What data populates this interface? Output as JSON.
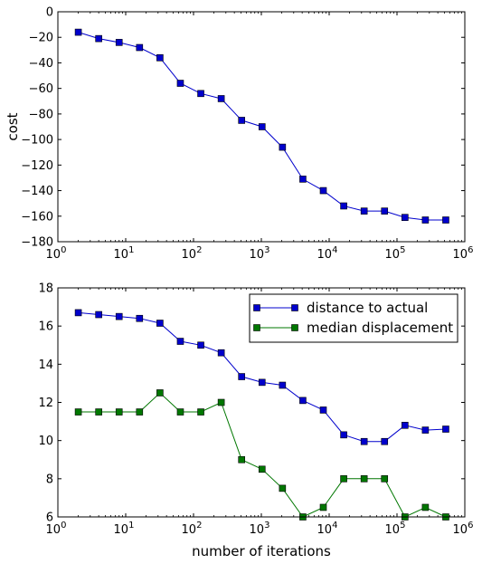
{
  "chart_data": [
    {
      "type": "line",
      "xscale": "log",
      "xlim": [
        1,
        1000000
      ],
      "ylim": [
        -180,
        0
      ],
      "xlabel": "",
      "ylabel": "cost",
      "xticks": [
        {
          "value": 1,
          "base": "10",
          "exp": "0"
        },
        {
          "value": 10,
          "base": "10",
          "exp": "1"
        },
        {
          "value": 100,
          "base": "10",
          "exp": "2"
        },
        {
          "value": 1000,
          "base": "10",
          "exp": "3"
        },
        {
          "value": 10000,
          "base": "10",
          "exp": "4"
        },
        {
          "value": 100000,
          "base": "10",
          "exp": "5"
        },
        {
          "value": 1000000,
          "base": "10",
          "exp": "6"
        }
      ],
      "yticks": [
        {
          "value": 0,
          "label": "0"
        },
        {
          "value": -20,
          "label": "−20"
        },
        {
          "value": -40,
          "label": "−40"
        },
        {
          "value": -60,
          "label": "−60"
        },
        {
          "value": -80,
          "label": "−80"
        },
        {
          "value": -100,
          "label": "−100"
        },
        {
          "value": -120,
          "label": "−120"
        },
        {
          "value": -140,
          "label": "−140"
        },
        {
          "value": -160,
          "label": "−160"
        },
        {
          "value": -180,
          "label": "−180"
        }
      ],
      "x": [
        2,
        4,
        8,
        16,
        32,
        64,
        128,
        256,
        512,
        1024,
        2048,
        4096,
        8192,
        16384,
        32768,
        65536,
        131072,
        262144,
        524288
      ],
      "series": [
        {
          "color": "#0000cc",
          "values": [
            -16,
            -21,
            -24,
            -28,
            -36,
            -56,
            -64,
            -68,
            -85,
            -90,
            -106,
            -131,
            -140,
            -152,
            -156,
            -156,
            -161,
            -163,
            -163
          ]
        }
      ]
    },
    {
      "type": "line",
      "xscale": "log",
      "xlim": [
        1,
        1000000
      ],
      "ylim": [
        6,
        18
      ],
      "xlabel": "number of iterations",
      "ylabel": "",
      "legend_position": "top-right",
      "xticks": [
        {
          "value": 1,
          "base": "10",
          "exp": "0"
        },
        {
          "value": 10,
          "base": "10",
          "exp": "1"
        },
        {
          "value": 100,
          "base": "10",
          "exp": "2"
        },
        {
          "value": 1000,
          "base": "10",
          "exp": "3"
        },
        {
          "value": 10000,
          "base": "10",
          "exp": "4"
        },
        {
          "value": 100000,
          "base": "10",
          "exp": "5"
        },
        {
          "value": 1000000,
          "base": "10",
          "exp": "6"
        }
      ],
      "yticks": [
        {
          "value": 6,
          "label": "6"
        },
        {
          "value": 8,
          "label": "8"
        },
        {
          "value": 10,
          "label": "10"
        },
        {
          "value": 12,
          "label": "12"
        },
        {
          "value": 14,
          "label": "14"
        },
        {
          "value": 16,
          "label": "16"
        },
        {
          "value": 18,
          "label": "18"
        }
      ],
      "x": [
        2,
        4,
        8,
        16,
        32,
        64,
        128,
        256,
        512,
        1024,
        2048,
        4096,
        8192,
        16384,
        32768,
        65536,
        131072,
        262144,
        524288
      ],
      "series": [
        {
          "name": "distance to actual",
          "color": "#0000cc",
          "values": [
            16.7,
            16.6,
            16.5,
            16.4,
            16.15,
            15.2,
            15.0,
            14.6,
            13.35,
            13.05,
            12.9,
            12.1,
            11.6,
            10.3,
            9.95,
            9.95,
            10.8,
            10.55,
            10.6
          ]
        },
        {
          "name": "median displacement",
          "color": "#007700",
          "values": [
            11.5,
            11.5,
            11.5,
            11.5,
            12.5,
            11.5,
            11.5,
            12.0,
            9.0,
            8.5,
            7.5,
            6.0,
            6.5,
            8.0,
            8.0,
            8.0,
            6.0,
            6.5,
            6.0
          ]
        }
      ]
    }
  ]
}
